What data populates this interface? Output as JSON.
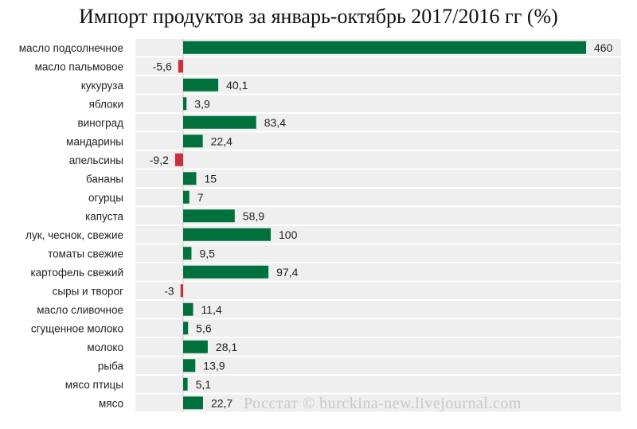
{
  "chart_data": {
    "type": "bar",
    "orientation": "horizontal",
    "title": "Импорт продуктов за январь-октябрь 2017/2016 гг (%)",
    "categories": [
      "масло подсолнечное",
      "масло пальмовое",
      "кукуруза",
      "яблоки",
      "виноград",
      "мандарины",
      "апельсины",
      "бананы",
      "огурцы",
      "капуста",
      "лук, чеснок, свежие",
      "томаты свежие",
      "картофель свежий",
      "сыры и творог",
      "масло сливочное",
      "сгущенное молоко",
      "молоко",
      "рыба",
      "мясо птицы",
      "мясо"
    ],
    "values": [
      460,
      -5.6,
      40.1,
      3.9,
      83.4,
      22.4,
      -9.2,
      15,
      7,
      58.9,
      100,
      9.5,
      97.4,
      -3,
      11.4,
      5.6,
      28.1,
      13.9,
      5.1,
      22.7
    ],
    "value_labels": [
      "460",
      "-5,6",
      "40,1",
      "3,9",
      "83,4",
      "22,4",
      "-9,2",
      "15",
      "7",
      "58,9",
      "100",
      "9,5",
      "97,4",
      "-3",
      "11,4",
      "5,6",
      "28,1",
      "13,9",
      "5,1",
      "22,7"
    ],
    "xlim": [
      -12,
      490
    ],
    "grid": false,
    "legend": "none"
  },
  "colors": {
    "positive": "#00703c",
    "negative": "#c8303a",
    "row_band": "#efefef"
  },
  "watermark": "Росстат © burckina-new.livejournal.com"
}
